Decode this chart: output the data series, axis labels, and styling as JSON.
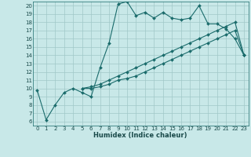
{
  "xlabel": "Humidex (Indice chaleur)",
  "bg_color": "#c8e8e8",
  "grid_color": "#a0c8c8",
  "line_color": "#1a6b6b",
  "xlim": [
    -0.5,
    23.5
  ],
  "ylim": [
    5.5,
    20.5
  ],
  "xticks": [
    0,
    1,
    2,
    3,
    4,
    5,
    6,
    7,
    8,
    9,
    10,
    11,
    12,
    13,
    14,
    15,
    16,
    17,
    18,
    19,
    20,
    21,
    22,
    23
  ],
  "yticks": [
    6,
    7,
    8,
    9,
    10,
    11,
    12,
    13,
    14,
    15,
    16,
    17,
    18,
    19,
    20
  ],
  "line1_x": [
    0,
    1,
    2,
    3,
    4,
    5,
    6,
    7,
    8,
    9,
    10,
    11,
    12,
    13,
    14,
    15,
    16,
    17,
    18,
    19,
    20,
    21,
    22,
    23
  ],
  "line1_y": [
    9.8,
    6.2,
    8.0,
    9.5,
    10.0,
    9.5,
    9.0,
    12.5,
    15.5,
    20.2,
    20.5,
    18.8,
    19.2,
    18.5,
    19.2,
    18.5,
    18.3,
    18.5,
    20.0,
    17.8,
    17.8,
    17.2,
    16.0,
    14.0
  ],
  "line2_x": [
    5,
    6,
    7,
    8,
    9,
    10,
    11,
    12,
    13,
    14,
    15,
    16,
    17,
    18,
    19,
    20,
    21,
    22,
    23
  ],
  "line2_y": [
    10.0,
    10.2,
    10.5,
    11.0,
    11.5,
    12.0,
    12.5,
    13.0,
    13.5,
    14.0,
    14.5,
    15.0,
    15.5,
    16.0,
    16.5,
    17.0,
    17.5,
    18.0,
    14.0
  ],
  "line3_x": [
    5,
    6,
    7,
    8,
    9,
    10,
    11,
    12,
    13,
    14,
    15,
    16,
    17,
    18,
    19,
    20,
    21,
    22,
    23
  ],
  "line3_y": [
    10.0,
    10.0,
    10.2,
    10.5,
    11.0,
    11.2,
    11.5,
    12.0,
    12.5,
    13.0,
    13.5,
    14.0,
    14.5,
    15.0,
    15.5,
    16.0,
    16.5,
    17.0,
    14.0
  ],
  "tick_fontsize": 5.0,
  "xlabel_fontsize": 6.0,
  "tick_color": "#1a4a4a",
  "marker_size": 2.0,
  "line_width": 0.8
}
